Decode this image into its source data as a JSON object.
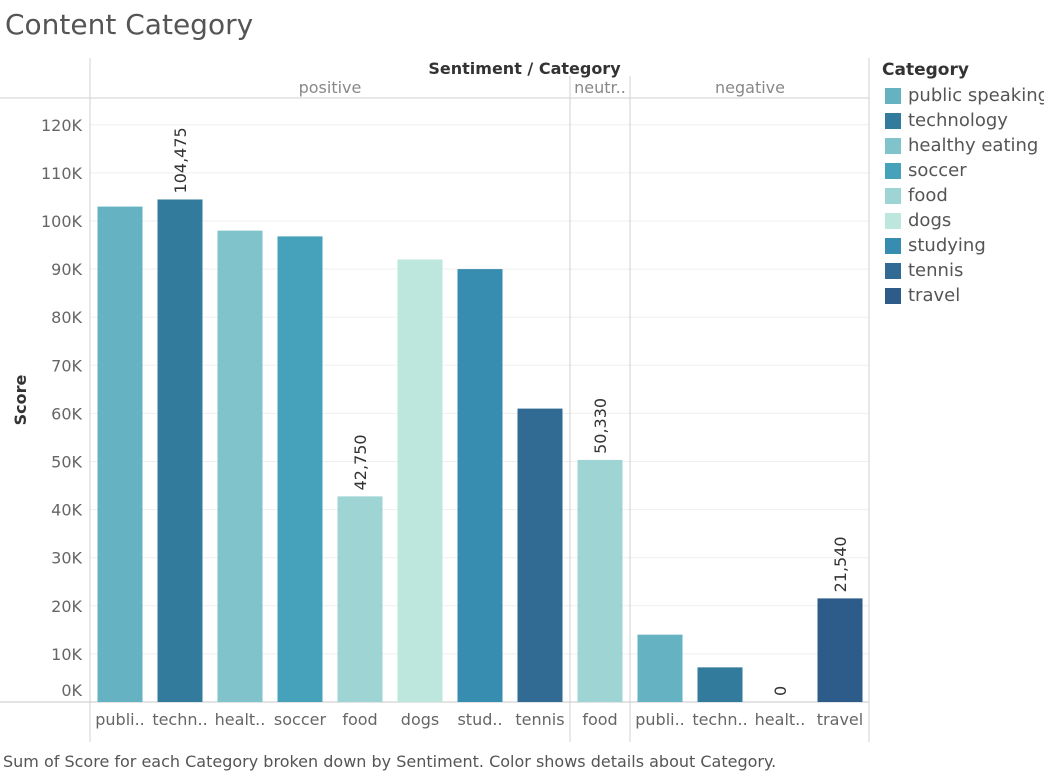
{
  "title": "Content Category",
  "caption": "Sum of Score for each Category broken down by Sentiment.  Color shows details about Category.",
  "legend": {
    "title": "Category",
    "items": [
      {
        "label": "public speaking",
        "color": "#65b2c3"
      },
      {
        "label": "technology",
        "color": "#327b9c"
      },
      {
        "label": "healthy eating",
        "color": "#80c3ca"
      },
      {
        "label": "soccer",
        "color": "#45a2ba"
      },
      {
        "label": "food",
        "color": "#9fd4d4"
      },
      {
        "label": "dogs",
        "color": "#bde6dc"
      },
      {
        "label": "studying",
        "color": "#378db0"
      },
      {
        "label": "tennis",
        "color": "#316a92"
      },
      {
        "label": "travel",
        "color": "#2d5b8a"
      }
    ]
  },
  "chart_data": {
    "type": "bar",
    "title": "Content Category",
    "column_header": "Sentiment / Category",
    "ylabel": "Score",
    "ylim": [
      0,
      125000
    ],
    "yticks": [
      {
        "value": 0,
        "label": "0K"
      },
      {
        "value": 10000,
        "label": "10K"
      },
      {
        "value": 20000,
        "label": "20K"
      },
      {
        "value": 30000,
        "label": "30K"
      },
      {
        "value": 40000,
        "label": "40K"
      },
      {
        "value": 50000,
        "label": "50K"
      },
      {
        "value": 60000,
        "label": "60K"
      },
      {
        "value": 70000,
        "label": "70K"
      },
      {
        "value": 80000,
        "label": "80K"
      },
      {
        "value": 90000,
        "label": "90K"
      },
      {
        "value": 100000,
        "label": "100K"
      },
      {
        "value": 110000,
        "label": "110K"
      },
      {
        "value": 120000,
        "label": "120K"
      }
    ],
    "gridlines": true,
    "panes": [
      {
        "sentiment": "positive",
        "header": "positive",
        "bars": [
          {
            "category": "public speaking",
            "label": "publi..",
            "value": 103000,
            "color": "#65b2c3",
            "data_label": ""
          },
          {
            "category": "technology",
            "label": "techn..",
            "value": 104475,
            "color": "#327b9c",
            "data_label": "104,475"
          },
          {
            "category": "healthy eating",
            "label": "healt..",
            "value": 98000,
            "color": "#80c3ca",
            "data_label": ""
          },
          {
            "category": "soccer",
            "label": "soccer",
            "value": 96800,
            "color": "#45a2ba",
            "data_label": ""
          },
          {
            "category": "food",
            "label": "food",
            "value": 42750,
            "color": "#9fd4d4",
            "data_label": "42,750"
          },
          {
            "category": "dogs",
            "label": "dogs",
            "value": 92000,
            "color": "#bde6dc",
            "data_label": ""
          },
          {
            "category": "studying",
            "label": "stud..",
            "value": 90000,
            "color": "#378db0",
            "data_label": ""
          },
          {
            "category": "tennis",
            "label": "tennis",
            "value": 61000,
            "color": "#316a92",
            "data_label": ""
          }
        ]
      },
      {
        "sentiment": "neutral",
        "header": "neutr..",
        "bars": [
          {
            "category": "food",
            "label": "food",
            "value": 50330,
            "color": "#9fd4d4",
            "data_label": "50,330"
          }
        ]
      },
      {
        "sentiment": "negative",
        "header": "negative",
        "bars": [
          {
            "category": "public speaking",
            "label": "publi..",
            "value": 14000,
            "color": "#65b2c3",
            "data_label": ""
          },
          {
            "category": "technology",
            "label": "techn..",
            "value": 7200,
            "color": "#327b9c",
            "data_label": ""
          },
          {
            "category": "healthy eating",
            "label": "healt..",
            "value": 0,
            "color": "#80c3ca",
            "data_label": "0"
          },
          {
            "category": "travel",
            "label": "travel",
            "value": 21540,
            "color": "#2d5b8a",
            "data_label": "21,540"
          }
        ]
      }
    ]
  }
}
